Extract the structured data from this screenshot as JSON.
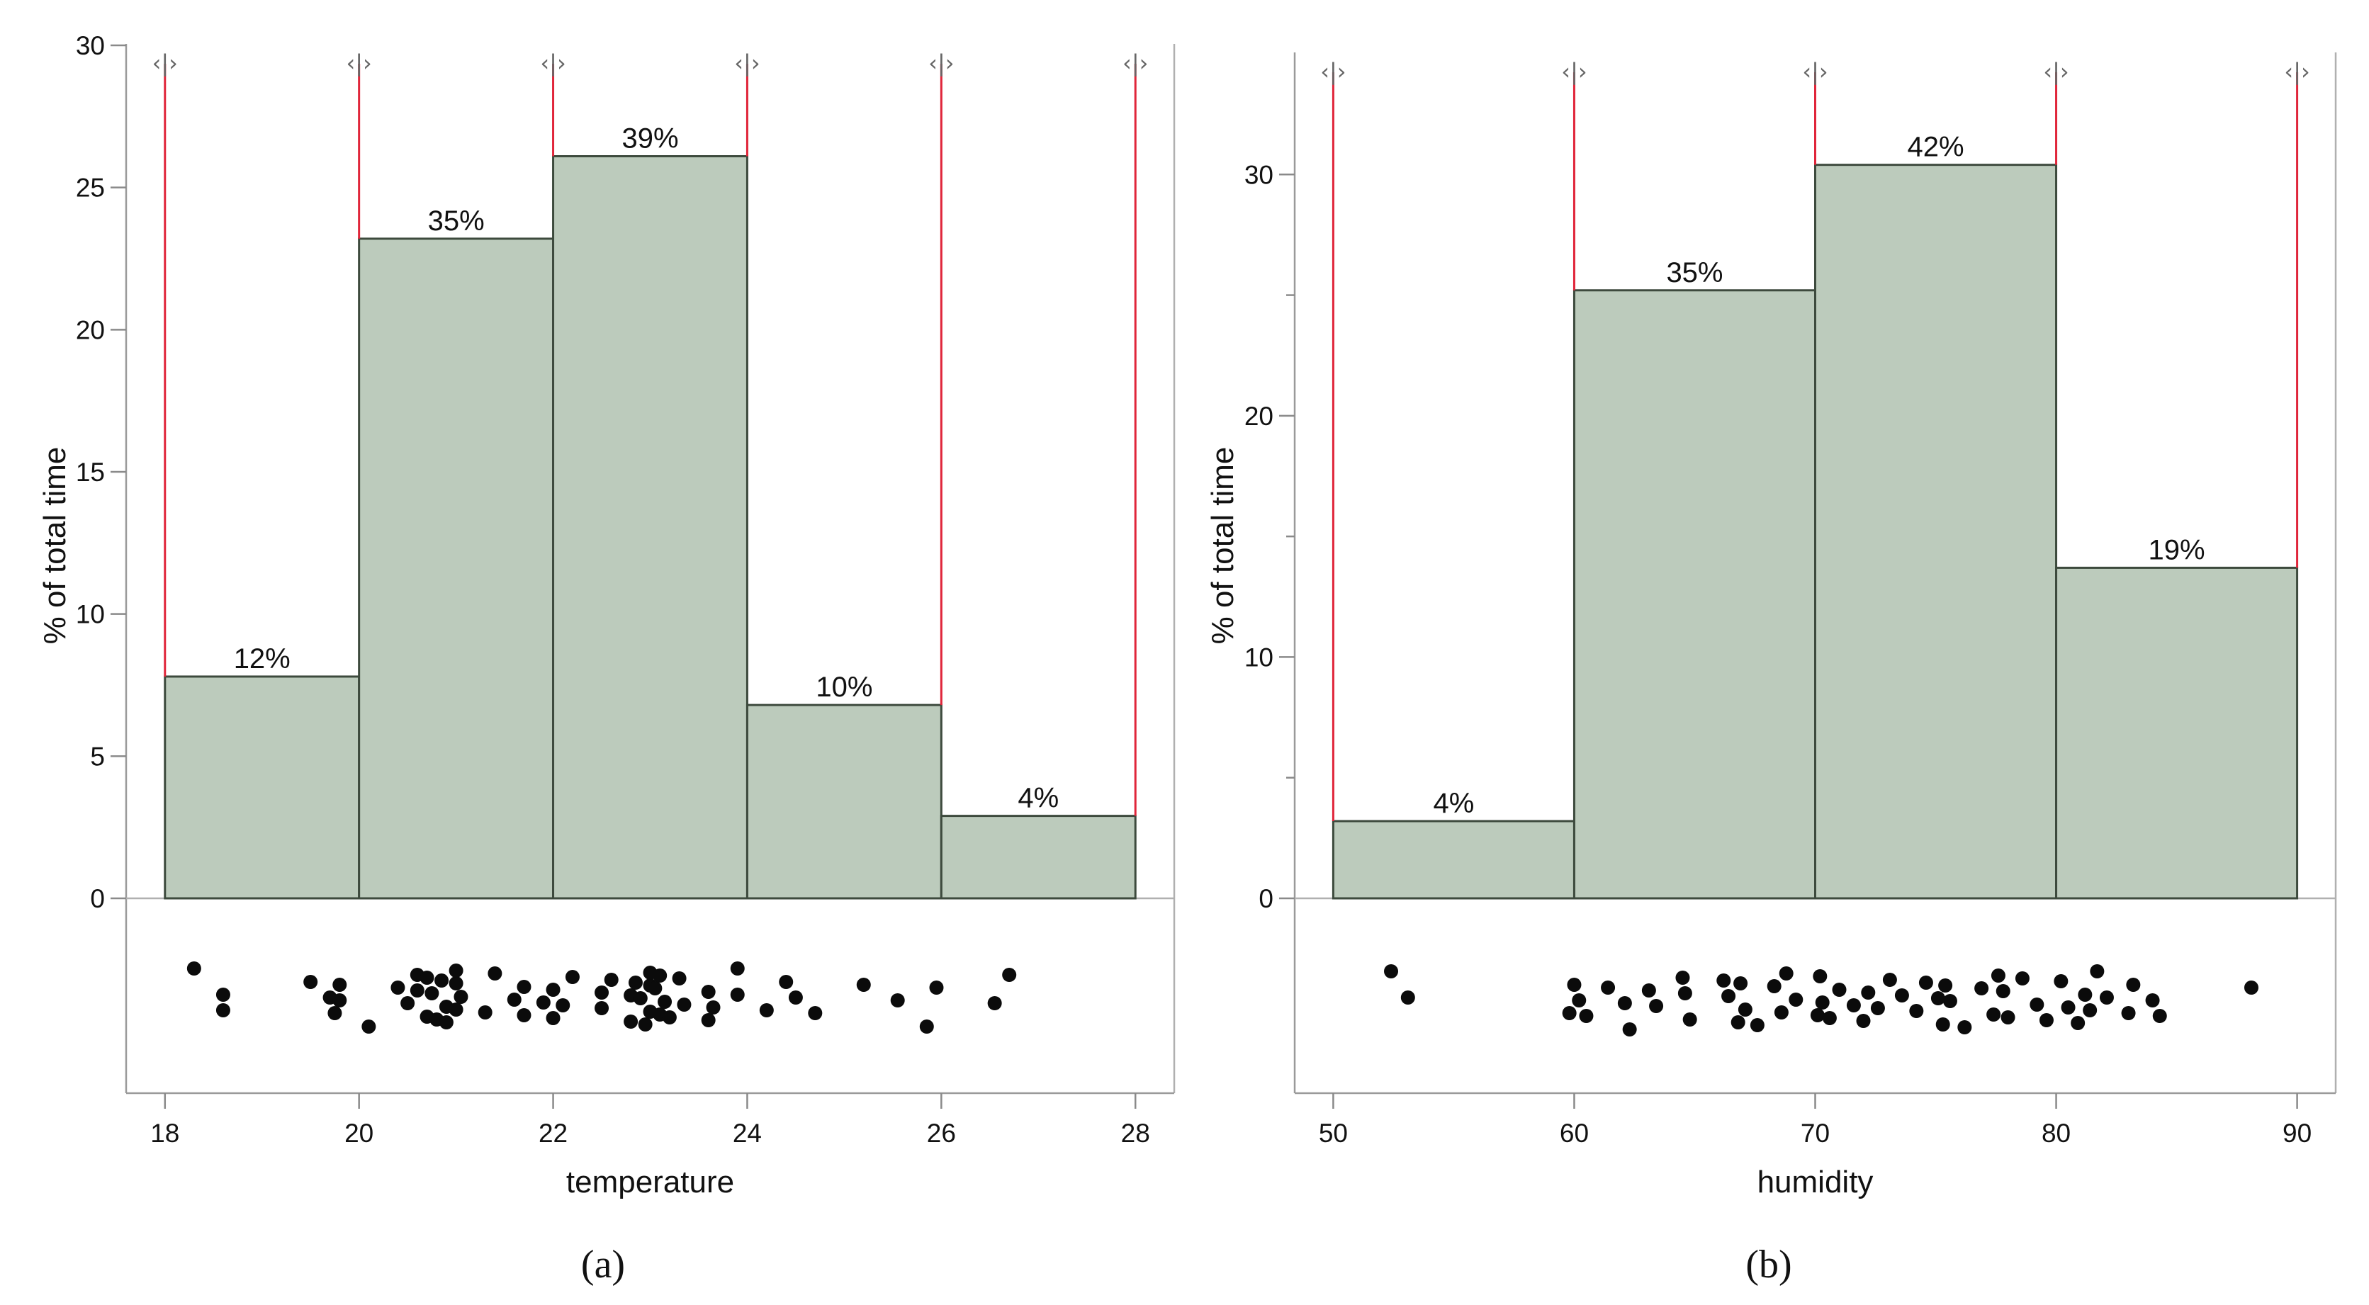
{
  "chart_data": [
    {
      "type": "bar",
      "subtype": "histogram",
      "caption": "(a)",
      "xlabel": "temperature",
      "ylabel": "% of total time",
      "ylim": [
        0,
        30
      ],
      "yticks": [
        0,
        5,
        10,
        15,
        20,
        25,
        30
      ],
      "ytick_labels": [
        "0",
        "5",
        "10",
        "15",
        "20",
        "25",
        "30"
      ],
      "minor_yticks": [],
      "xlim": [
        17.6,
        28.4
      ],
      "xticks": [
        18,
        20,
        22,
        24,
        26,
        28
      ],
      "xtick_labels": [
        "18",
        "20",
        "22",
        "24",
        "26",
        "28"
      ],
      "bin_edges": [
        18,
        20,
        22,
        24,
        26,
        28
      ],
      "values": [
        7.8,
        23.2,
        26.1,
        6.8,
        2.9
      ],
      "labels": [
        "12%",
        "35%",
        "39%",
        "10%",
        "4%"
      ],
      "bar_color": "#bccbbc",
      "edge_line_color": "#e0253a",
      "handle_glyph": "‹|›",
      "points": [
        18.3,
        18.6,
        18.6,
        19.5,
        19.7,
        19.75,
        19.8,
        19.8,
        20.1,
        20.4,
        20.5,
        20.6,
        20.6,
        20.7,
        20.7,
        20.75,
        20.8,
        20.85,
        20.9,
        20.9,
        21.0,
        21.0,
        21.0,
        21.05,
        21.3,
        21.4,
        21.6,
        21.7,
        21.7,
        21.9,
        22.0,
        22.0,
        22.1,
        22.2,
        22.5,
        22.5,
        22.6,
        22.8,
        22.8,
        22.85,
        22.9,
        22.95,
        23.0,
        23.0,
        23.0,
        23.05,
        23.1,
        23.1,
        23.15,
        23.2,
        23.3,
        23.35,
        23.6,
        23.6,
        23.65,
        23.9,
        23.9,
        24.2,
        24.4,
        24.5,
        24.7,
        25.2,
        25.55,
        25.85,
        25.95,
        26.55,
        26.7
      ]
    },
    {
      "type": "bar",
      "subtype": "histogram",
      "caption": "(b)",
      "xlabel": "humidity",
      "ylabel": "% of total time",
      "ylim": [
        0,
        35
      ],
      "yticks": [
        0,
        10,
        20,
        30
      ],
      "ytick_labels": [
        "0",
        "10",
        "20",
        "30"
      ],
      "minor_yticks": [
        5,
        15,
        25
      ],
      "xlim": [
        48.4,
        91.6
      ],
      "xticks": [
        50,
        60,
        70,
        80,
        90
      ],
      "xtick_labels": [
        "50",
        "60",
        "70",
        "80",
        "90"
      ],
      "bin_edges": [
        50,
        60,
        70,
        80,
        90
      ],
      "values": [
        3.2,
        25.2,
        30.4,
        13.7
      ],
      "labels": [
        "4%",
        "35%",
        "42%",
        "19%"
      ],
      "bar_color": "#bccbbc",
      "edge_line_color": "#e0253a",
      "handle_glyph": "‹|›",
      "points": [
        52.4,
        53.1,
        59.8,
        60.0,
        60.2,
        60.5,
        61.4,
        62.1,
        62.3,
        63.1,
        63.4,
        64.5,
        64.6,
        64.8,
        66.2,
        66.4,
        66.8,
        66.9,
        67.1,
        67.6,
        68.3,
        68.6,
        68.8,
        69.2,
        70.1,
        70.2,
        70.3,
        70.6,
        71.0,
        71.6,
        72.0,
        72.2,
        72.6,
        73.1,
        73.6,
        74.2,
        74.6,
        75.1,
        75.3,
        75.4,
        75.6,
        76.2,
        76.9,
        77.4,
        77.6,
        77.8,
        78.0,
        78.6,
        79.2,
        79.6,
        80.2,
        80.5,
        80.9,
        81.2,
        81.4,
        81.7,
        82.1,
        83.0,
        83.2,
        84.0,
        84.3,
        88.1
      ]
    }
  ]
}
